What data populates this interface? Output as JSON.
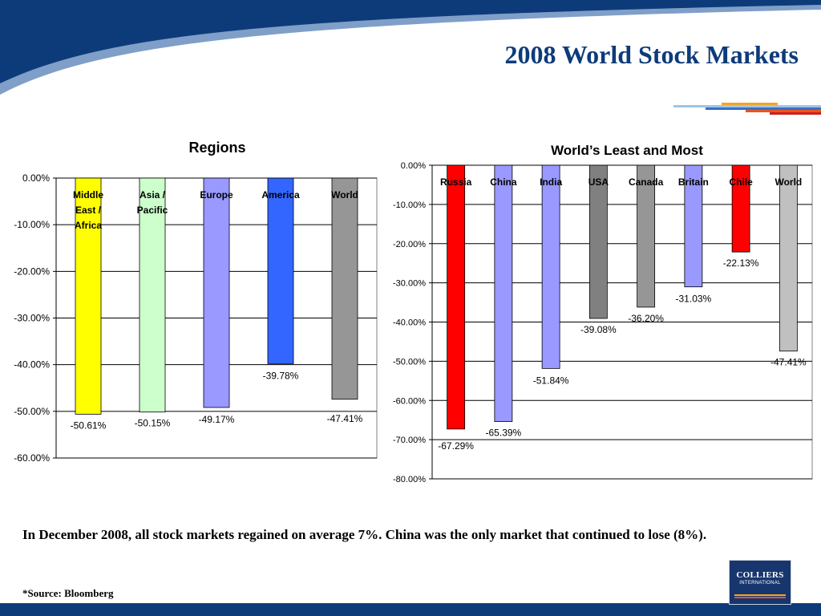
{
  "slide": {
    "title": "2008 World Stock Markets",
    "caption": "In December 2008, all stock markets regained on average 7%. China was the only market that continued to lose (8%).",
    "source": "*Source: Bloomberg",
    "logo": {
      "name": "COLLIERS",
      "sub": "INTERNATIONAL"
    },
    "colors": {
      "header_navy": "#0d3b7a",
      "swoosh_light": "#7f9fc8",
      "footer_navy": "#0d3b7a",
      "stripe_colors": [
        "#9fc5e8",
        "#3a6fc4",
        "#f5a623",
        "#e8541d",
        "#cc1f1f"
      ]
    }
  },
  "chart_data": [
    {
      "type": "bar",
      "title": "Regions",
      "categories": [
        "Middle East / Africa",
        "Asia / Pacific",
        "Europe",
        "America",
        "World"
      ],
      "category_label_lines": [
        [
          "Middle",
          "East /",
          "Africa"
        ],
        [
          "Asia /",
          "Pacific"
        ],
        [
          "Europe"
        ],
        [
          "America"
        ],
        [
          "World"
        ]
      ],
      "values": [
        -50.61,
        -50.15,
        -49.17,
        -39.78,
        -47.41
      ],
      "value_labels": [
        "-50.61%",
        "-50.15%",
        "-49.17%",
        "-39.78%",
        "-47.41%"
      ],
      "bar_colors": [
        "#ffff00",
        "#ccffcc",
        "#9999ff",
        "#3366ff",
        "#969696"
      ],
      "ylim": [
        -60,
        0
      ],
      "yticks": [
        0,
        -10,
        -20,
        -30,
        -40,
        -50,
        -60
      ],
      "ytick_labels": [
        "0.00%",
        "-10.00%",
        "-20.00%",
        "-30.00%",
        "-40.00%",
        "-50.00%",
        "-60.00%"
      ],
      "grid": true,
      "legend": false,
      "xlabel": "",
      "ylabel": ""
    },
    {
      "type": "bar",
      "title": "World’s Least and Most",
      "categories": [
        "Russia",
        "China",
        "India",
        "USA",
        "Canada",
        "Britain",
        "Chile",
        "World"
      ],
      "category_label_lines": [
        [
          "Russia"
        ],
        [
          "China"
        ],
        [
          "India"
        ],
        [
          "USA"
        ],
        [
          "Canada"
        ],
        [
          "Britain"
        ],
        [
          "Chile"
        ],
        [
          "World"
        ]
      ],
      "values": [
        -67.29,
        -65.39,
        -51.84,
        -39.08,
        -36.2,
        -31.03,
        -22.13,
        -47.41
      ],
      "value_labels": [
        "-67.29%",
        "-65.39%",
        "-51.84%",
        "-39.08%",
        "-36.20%",
        "-31.03%",
        "-22.13%",
        "-47.41%"
      ],
      "bar_colors": [
        "#ff0000",
        "#9999ff",
        "#9999ff",
        "#808080",
        "#969696",
        "#9999ff",
        "#ff0000",
        "#c0c0c0"
      ],
      "ylim": [
        -80,
        0
      ],
      "yticks": [
        0,
        -10,
        -20,
        -30,
        -40,
        -50,
        -60,
        -70,
        -80
      ],
      "ytick_labels": [
        "0.00%",
        "-10.00%",
        "-20.00%",
        "-30.00%",
        "-40.00%",
        "-50.00%",
        "-60.00%",
        "-70.00%",
        "-80.00%"
      ],
      "grid": true,
      "legend": false,
      "xlabel": "",
      "ylabel": ""
    }
  ]
}
